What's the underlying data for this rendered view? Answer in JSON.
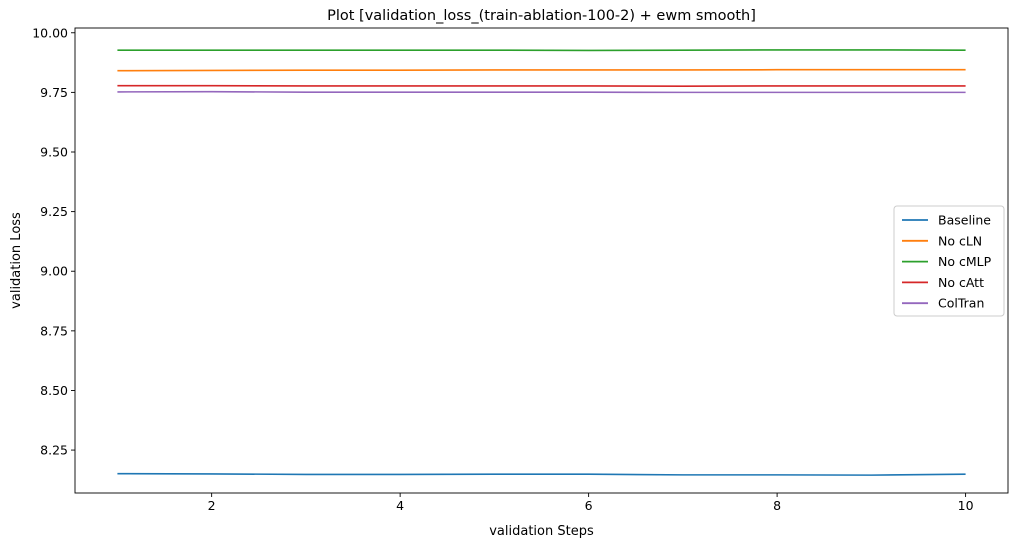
{
  "chart_data": {
    "type": "line",
    "title": "Plot [validation_loss_(train-ablation-100-2) + ewm smooth]",
    "xlabel": "validation Steps",
    "ylabel": "validation Loss",
    "xlim": [
      0.55,
      10.45
    ],
    "ylim": [
      8.07,
      10.02
    ],
    "xticks": [
      2,
      4,
      6,
      8,
      10
    ],
    "xtick_labels": [
      "2",
      "4",
      "6",
      "8",
      "10"
    ],
    "yticks": [
      8.25,
      8.5,
      8.75,
      9.0,
      9.25,
      9.5,
      9.75,
      10.0
    ],
    "ytick_labels": [
      "8.25",
      "8.50",
      "8.75",
      "9.00",
      "9.25",
      "9.50",
      "9.75",
      "10.00"
    ],
    "grid": false,
    "legend_position": "center-right",
    "x": [
      1,
      2,
      3,
      4,
      5,
      6,
      7,
      8,
      9,
      10
    ],
    "series": [
      {
        "name": "Baseline",
        "color": "#1f77b4",
        "values": [
          8.151,
          8.15,
          8.148,
          8.148,
          8.149,
          8.149,
          8.146,
          8.146,
          8.145,
          8.149
        ]
      },
      {
        "name": "No cLN",
        "color": "#ff7f0e",
        "values": [
          9.841,
          9.842,
          9.843,
          9.843,
          9.844,
          9.844,
          9.844,
          9.845,
          9.845,
          9.845
        ]
      },
      {
        "name": "No cMLP",
        "color": "#2ca02c",
        "values": [
          9.927,
          9.927,
          9.927,
          9.927,
          9.927,
          9.926,
          9.927,
          9.928,
          9.928,
          9.927
        ]
      },
      {
        "name": "No cAtt",
        "color": "#d62728",
        "values": [
          9.778,
          9.778,
          9.777,
          9.777,
          9.777,
          9.777,
          9.776,
          9.777,
          9.777,
          9.777
        ]
      },
      {
        "name": "ColTran",
        "color": "#9467bd",
        "values": [
          9.752,
          9.753,
          9.751,
          9.751,
          9.751,
          9.751,
          9.75,
          9.75,
          9.75,
          9.75
        ]
      }
    ]
  }
}
